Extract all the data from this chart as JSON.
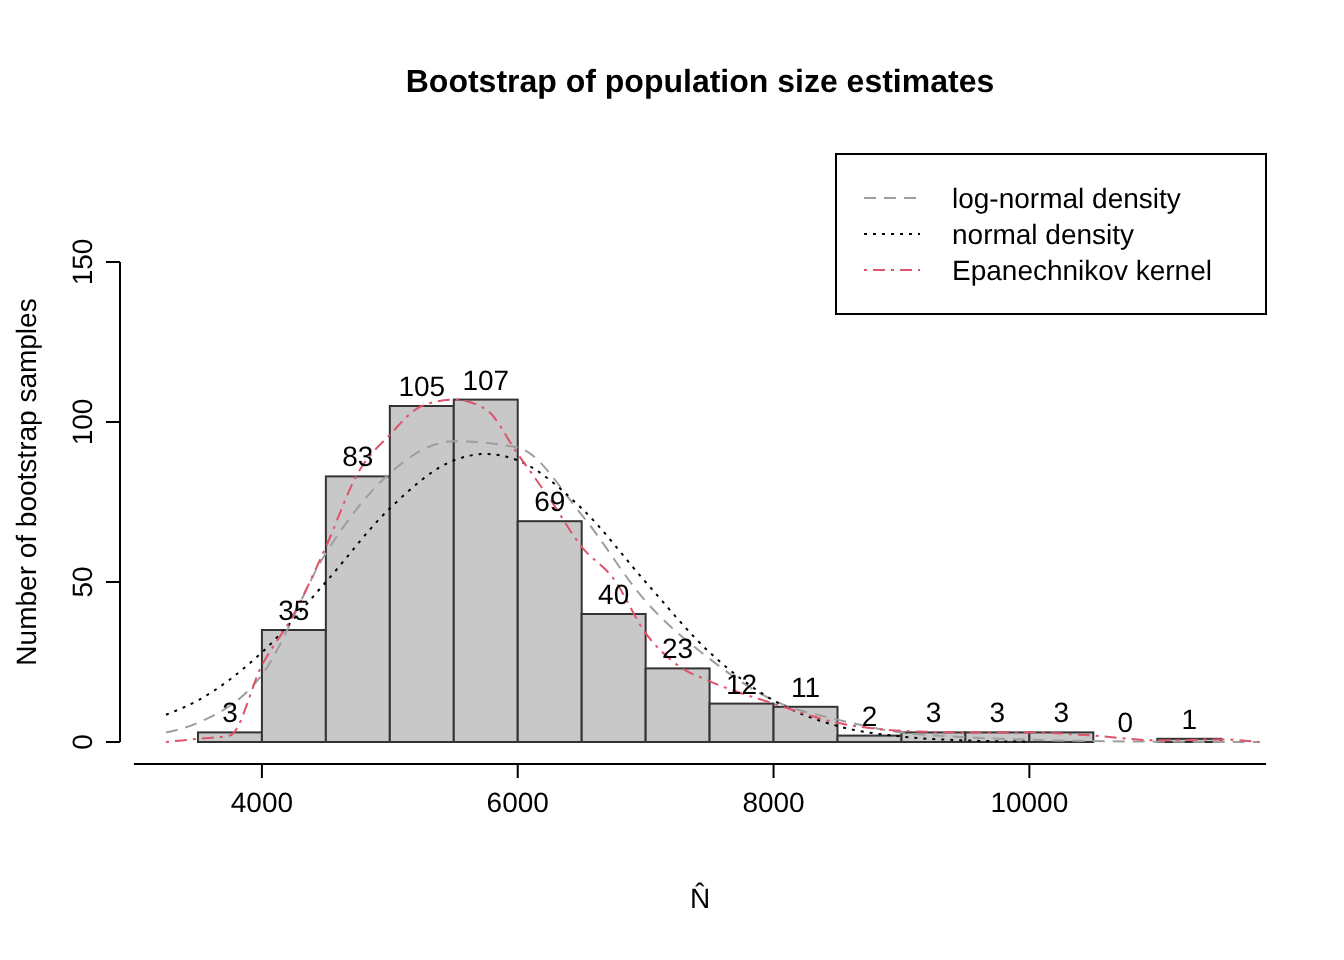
{
  "chart_data": {
    "type": "histogram",
    "title": "Bootstrap of population size estimates",
    "xlabel": "N̂",
    "ylabel": "Number of bootstrap samples",
    "bins": [
      3500,
      4000,
      4500,
      5000,
      5500,
      6000,
      6500,
      7000,
      7500,
      8000,
      8500,
      9000,
      9500,
      10000,
      10500,
      11000,
      11500
    ],
    "values": [
      3,
      35,
      83,
      105,
      107,
      69,
      40,
      23,
      12,
      11,
      2,
      3,
      3,
      3,
      0,
      1
    ],
    "color": "#c8c8c8",
    "value_labels": [
      "3",
      "35",
      "83",
      "105",
      "107",
      "69",
      "40",
      "23",
      "12",
      "11",
      "2",
      "3",
      "3",
      "3",
      "0",
      "1"
    ],
    "xlim": [
      3000,
      11850
    ],
    "ylim": [
      0,
      150
    ],
    "xticks": [
      4000,
      6000,
      8000,
      10000
    ],
    "yticks": [
      0,
      50,
      100,
      150
    ],
    "legend": "top right",
    "series": [
      {
        "name": "log-normal density",
        "type": "line",
        "line_style": "dashed",
        "color": "#9e9e9e",
        "x": [
          3250,
          3500,
          4000,
          4500,
          5000,
          5500,
          6000,
          6500,
          7000,
          7500,
          8000,
          8500,
          9000,
          9500,
          10000,
          11000,
          11800
        ],
        "values": [
          3,
          6,
          21,
          59,
          84,
          94,
          92,
          71,
          44,
          26,
          13,
          7,
          3,
          1.5,
          0.7,
          0.1,
          0
        ]
      },
      {
        "name": "normal density",
        "type": "line",
        "line_style": "dotted",
        "color": "#000000",
        "x": [
          3250,
          3500,
          4000,
          4500,
          5000,
          5500,
          5750,
          6000,
          6500,
          7000,
          7500,
          8000,
          8500,
          9000,
          9500,
          10000
        ],
        "values": [
          8.5,
          13,
          28,
          50,
          73,
          88,
          90,
          88,
          73,
          50,
          28,
          13,
          5,
          1.7,
          0.5,
          0.1
        ]
      },
      {
        "name": "Epanechnikov kernel",
        "type": "line",
        "line_style": "dashdot",
        "color": "#df536b",
        "x": [
          3250,
          3500,
          3750,
          4000,
          4250,
          4500,
          4750,
          5000,
          5250,
          5500,
          5750,
          6000,
          6250,
          6500,
          6750,
          7000,
          7250,
          7500,
          8000,
          8500,
          9000,
          9500,
          10000,
          10500,
          11000,
          11500,
          11800
        ],
        "values": [
          0,
          1,
          2,
          24,
          40,
          61,
          84,
          96,
          105,
          107,
          104,
          90,
          76,
          61,
          51,
          34,
          24,
          19,
          12,
          6,
          3.5,
          3,
          3,
          2,
          0.5,
          0.8,
          0
        ]
      }
    ]
  }
}
